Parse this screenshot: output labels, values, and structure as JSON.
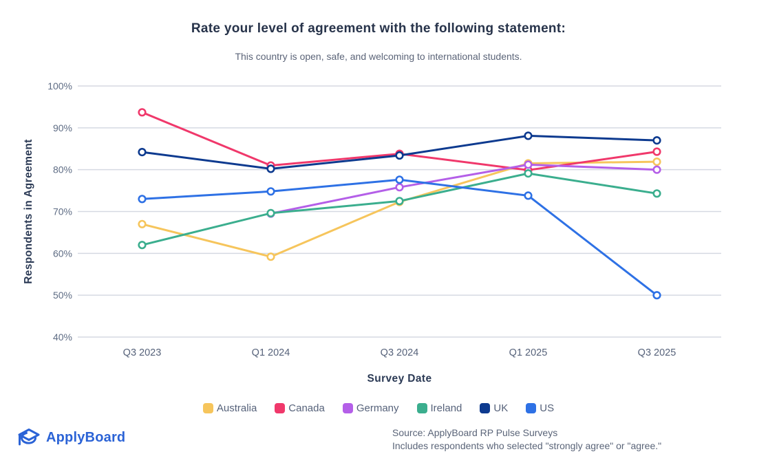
{
  "title": "Rate your level of agreement with the following statement:",
  "subtitle": "This country is open, safe, and welcoming to international students.",
  "chart_data": {
    "type": "line",
    "title": "Rate your level of agreement with the following statement:",
    "subtitle": "This country is open, safe, and welcoming to international students.",
    "xlabel": "Survey Date",
    "ylabel": "Respondents in Agreement",
    "categories": [
      "Q3 2023",
      "Q1 2024",
      "Q3 2024",
      "Q1 2025",
      "Q3 2025"
    ],
    "series": [
      {
        "name": "Australia",
        "color": "#F6C55C",
        "values": [
          67.0,
          59.2,
          72.3,
          81.5,
          81.9
        ]
      },
      {
        "name": "Canada",
        "color": "#F0386B",
        "values": [
          93.7,
          81.0,
          83.8,
          79.9,
          84.3
        ]
      },
      {
        "name": "Germany",
        "color": "#B45FE8",
        "values": [
          null,
          69.5,
          75.8,
          81.2,
          80.0
        ]
      },
      {
        "name": "Ireland",
        "color": "#3BAE8E",
        "values": [
          62.0,
          69.6,
          72.5,
          79.1,
          74.3
        ]
      },
      {
        "name": "UK",
        "color": "#0D3A8F",
        "values": [
          84.2,
          80.2,
          83.4,
          88.1,
          87.0
        ]
      },
      {
        "name": "US",
        "color": "#2E71E5",
        "values": [
          73.0,
          74.8,
          77.6,
          73.8,
          50.0
        ]
      }
    ],
    "ylim": [
      40,
      100
    ],
    "ytick_step": 10,
    "ytick_suffix": "%",
    "grid": "horizontal",
    "grid_color": "#D5D9E2",
    "marker": "open-circle",
    "legend_position": "bottom"
  },
  "footer": {
    "logo_text": "ApplyBoard",
    "logo_color": "#2B63D6",
    "source_line1": "Source: ApplyBoard RP Pulse Surveys",
    "source_line2": "Includes respondents who selected \"strongly agree\" or \"agree.\""
  }
}
